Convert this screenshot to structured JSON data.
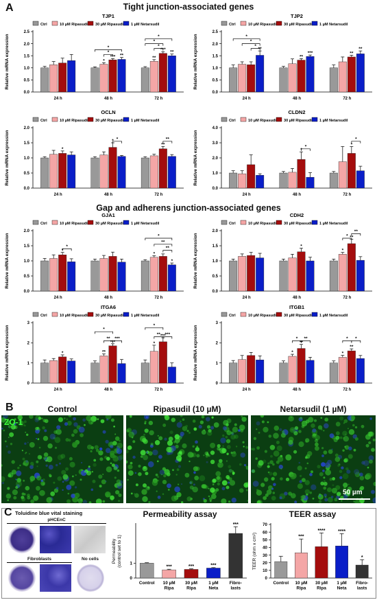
{
  "panel_a": {
    "letter": "A",
    "section_tight": "Tight junction-associated genes",
    "section_gap": "Gap and adherens junction-associated genes"
  },
  "panel_b": {
    "letter": "B",
    "titles": [
      "Control",
      "Ripasudil (10 µM)",
      "Netarsudil (1 µM)"
    ],
    "stain_label": "ZO-1",
    "scale_bar": "50 µm"
  },
  "panel_c": {
    "letter": "C",
    "staining_title": "Toluidine blue vital staining",
    "label_phcenc": "pHCEnC",
    "label_fibro": "Fibroblasts",
    "label_nocells": "No cells"
  },
  "colors": {
    "ctrl": "#999999",
    "ripa10": "#f4a6a6",
    "ripa30": "#a40d0d",
    "neta": "#0a1ec8",
    "fibro": "#333333"
  },
  "chart_data": [
    {
      "type": "bar",
      "title": "TJP1",
      "ylabel": "Relative mRNA expression",
      "ylim": [
        0,
        2.5
      ],
      "yticks": [
        "0.0",
        "0.5",
        "1.0",
        "1.5",
        "2.0",
        "2.5"
      ],
      "categories": [
        "24 h",
        "48 h",
        "72 h"
      ],
      "series": [
        {
          "name": "Ctrl",
          "values": [
            1.0,
            1.0,
            1.0
          ],
          "err": [
            0.06,
            0.04,
            0.05
          ],
          "stars": [
            "",
            "",
            ""
          ]
        },
        {
          "name": "10 µM Ripasudil",
          "values": [
            1.13,
            1.15,
            1.27
          ],
          "err": [
            0.13,
            0.06,
            0.07
          ],
          "stars": [
            "",
            "*",
            "**"
          ]
        },
        {
          "name": "30 µM Ripasudil",
          "values": [
            1.2,
            1.33,
            1.6
          ],
          "err": [
            0.2,
            0.05,
            0.07
          ],
          "stars": [
            "",
            "***",
            "***"
          ]
        },
        {
          "name": "1 µM Netarsudil",
          "values": [
            1.3,
            1.35,
            1.5
          ],
          "err": [
            0.25,
            0.08,
            0.07
          ],
          "stars": [
            "",
            "**",
            "**"
          ]
        }
      ],
      "brackets": [
        {
          "cat": 1,
          "from": 1,
          "to": 2,
          "level": 1.55,
          "label": "*"
        },
        {
          "cat": 1,
          "from": 0,
          "to": 3,
          "level": 1.75,
          "label": "*"
        },
        {
          "cat": 2,
          "from": 1,
          "to": 2,
          "level": 1.8,
          "label": "*"
        },
        {
          "cat": 2,
          "from": 0,
          "to": 2,
          "level": 2.0,
          "label": "*"
        },
        {
          "cat": 2,
          "from": 0,
          "to": 3,
          "level": 2.2,
          "label": "*"
        }
      ]
    },
    {
      "type": "bar",
      "title": "TJP2",
      "ylabel": "Relative mRNA expression",
      "ylim": [
        0,
        2.5
      ],
      "yticks": [
        "0.0",
        "0.5",
        "1.0",
        "1.5",
        "2.0",
        "2.5"
      ],
      "categories": [
        "24 h",
        "48 h",
        "72 h"
      ],
      "series": [
        {
          "name": "Ctrl",
          "values": [
            1.0,
            1.0,
            1.0
          ],
          "err": [
            0.12,
            0.06,
            0.12
          ],
          "stars": [
            "",
            "",
            ""
          ]
        },
        {
          "name": "10 µM Ripasudil",
          "values": [
            1.15,
            1.17,
            1.25
          ],
          "err": [
            0.1,
            0.2,
            0.2
          ],
          "stars": [
            "",
            "",
            ""
          ]
        },
        {
          "name": "30 µM Ripasudil",
          "values": [
            1.13,
            1.32,
            1.45
          ],
          "err": [
            0.12,
            0.06,
            0.07
          ],
          "stars": [
            "",
            "**",
            "**"
          ]
        },
        {
          "name": "1 µM Netarsudil",
          "values": [
            1.52,
            1.47,
            1.58
          ],
          "err": [
            0.18,
            0.06,
            0.12
          ],
          "stars": [
            "**",
            "***",
            "**"
          ]
        }
      ],
      "brackets": [
        {
          "cat": 0,
          "from": 2,
          "to": 3,
          "level": 1.8,
          "label": "*"
        },
        {
          "cat": 0,
          "from": 1,
          "to": 3,
          "level": 2.0,
          "label": "*"
        },
        {
          "cat": 0,
          "from": 0,
          "to": 3,
          "level": 2.2,
          "label": "*"
        }
      ]
    },
    {
      "type": "bar",
      "title": "OCLN",
      "ylabel": "Relative mRNA expression",
      "ylim": [
        0,
        2.0
      ],
      "yticks": [
        "0.0",
        "0.5",
        "1.0",
        "1.5",
        "2.0"
      ],
      "categories": [
        "24 h",
        "48 h",
        "72 h"
      ],
      "series": [
        {
          "name": "Ctrl",
          "values": [
            1.0,
            1.0,
            1.0
          ],
          "err": [
            0.04,
            0.04,
            0.04
          ],
          "stars": [
            "",
            "",
            ""
          ]
        },
        {
          "name": "10 µM Ripasudil",
          "values": [
            1.12,
            1.1,
            1.07
          ],
          "err": [
            0.13,
            0.1,
            0.05
          ],
          "stars": [
            "",
            "",
            ""
          ]
        },
        {
          "name": "30 µM Ripasudil",
          "values": [
            1.15,
            1.35,
            1.3
          ],
          "err": [
            0.08,
            0.15,
            0.08
          ],
          "stars": [
            "*",
            "*",
            "**"
          ]
        },
        {
          "name": "1 µM Netarsudil",
          "values": [
            1.1,
            1.05,
            1.05
          ],
          "err": [
            0.1,
            0.03,
            0.06
          ],
          "stars": [
            "",
            "",
            ""
          ]
        }
      ],
      "brackets": [
        {
          "cat": 1,
          "from": 2,
          "to": 3,
          "level": 1.55,
          "label": "*"
        },
        {
          "cat": 2,
          "from": 2,
          "to": 3,
          "level": 1.55,
          "label": "**"
        }
      ]
    },
    {
      "type": "bar",
      "title": "CLDN2",
      "ylabel": "Relative mRNA expression",
      "ylim": [
        0,
        4.0
      ],
      "yticks": [
        "0.0",
        "1.0",
        "2.0",
        "3.0",
        "4.0"
      ],
      "categories": [
        "24 h",
        "48 h",
        "72 h"
      ],
      "series": [
        {
          "name": "Ctrl",
          "values": [
            1.0,
            1.0,
            1.0
          ],
          "err": [
            0.15,
            0.1,
            0.1
          ],
          "stars": [
            "",
            "",
            ""
          ]
        },
        {
          "name": "10 µM Ripasudil",
          "values": [
            0.95,
            1.05,
            1.75
          ],
          "err": [
            0.2,
            0.25,
            1.0
          ],
          "stars": [
            "",
            "",
            ""
          ]
        },
        {
          "name": "30 µM Ripasudil",
          "values": [
            1.55,
            1.9,
            2.3
          ],
          "err": [
            0.65,
            0.5,
            0.45
          ],
          "stars": [
            "",
            "*",
            "*"
          ]
        },
        {
          "name": "1 µM Netarsudil",
          "values": [
            0.85,
            0.72,
            1.15
          ],
          "err": [
            0.1,
            0.3,
            0.3
          ],
          "stars": [
            "",
            "",
            ""
          ]
        }
      ],
      "brackets": [
        {
          "cat": 1,
          "from": 2,
          "to": 3,
          "level": 2.6,
          "label": "*"
        },
        {
          "cat": 2,
          "from": 2,
          "to": 3,
          "level": 3.1,
          "label": "*"
        }
      ]
    },
    {
      "type": "bar",
      "title": "GJA1",
      "ylabel": "Relative mRNA expression",
      "ylim": [
        0,
        2.0
      ],
      "yticks": [
        "0.0",
        "0.5",
        "1.0",
        "1.5",
        "2.0"
      ],
      "categories": [
        "24 h",
        "48 h",
        "72 h"
      ],
      "series": [
        {
          "name": "Ctrl",
          "values": [
            1.0,
            1.0,
            1.0
          ],
          "err": [
            0.08,
            0.06,
            0.04
          ],
          "stars": [
            "",
            "",
            ""
          ]
        },
        {
          "name": "10 µM Ripasudil",
          "values": [
            1.08,
            1.08,
            1.12
          ],
          "err": [
            0.12,
            0.1,
            0.05
          ],
          "stars": [
            "",
            "",
            "*"
          ]
        },
        {
          "name": "30 µM Ripasudil",
          "values": [
            1.2,
            1.15,
            1.15
          ],
          "err": [
            0.08,
            0.14,
            0.08
          ],
          "stars": [
            "*",
            "",
            ""
          ]
        },
        {
          "name": "1 µM Netarsudil",
          "values": [
            0.97,
            0.96,
            0.87
          ],
          "err": [
            0.1,
            0.1,
            0.06
          ],
          "stars": [
            "",
            "",
            "*"
          ]
        }
      ],
      "brackets": [
        {
          "cat": 0,
          "from": 2,
          "to": 3,
          "level": 1.4,
          "label": "*"
        },
        {
          "cat": 2,
          "from": 2,
          "to": 3,
          "level": 1.35,
          "label": "**"
        },
        {
          "cat": 2,
          "from": 1,
          "to": 3,
          "level": 1.55,
          "label": "**"
        },
        {
          "cat": 2,
          "from": 0,
          "to": 3,
          "level": 1.75,
          "label": "*"
        }
      ]
    },
    {
      "type": "bar",
      "title": "CDH2",
      "ylabel": "Relative mRNA expression",
      "ylim": [
        0,
        2.0
      ],
      "yticks": [
        "0.0",
        "0.5",
        "1.0",
        "1.5",
        "2.0"
      ],
      "categories": [
        "24 h",
        "48 h",
        "72 h"
      ],
      "series": [
        {
          "name": "Ctrl",
          "values": [
            1.0,
            1.0,
            1.0
          ],
          "err": [
            0.06,
            0.06,
            0.06
          ],
          "stars": [
            "",
            "",
            ""
          ]
        },
        {
          "name": "10 µM Ripasudil",
          "values": [
            1.15,
            1.1,
            1.22
          ],
          "err": [
            0.08,
            0.12,
            0.06
          ],
          "stars": [
            "",
            "",
            "*"
          ]
        },
        {
          "name": "30 µM Ripasudil",
          "values": [
            1.18,
            1.3,
            1.57
          ],
          "err": [
            0.1,
            0.12,
            0.15
          ],
          "stars": [
            "",
            "*",
            "**"
          ]
        },
        {
          "name": "1 µM Netarsudil",
          "values": [
            1.1,
            1.0,
            1.02
          ],
          "err": [
            0.15,
            0.12,
            0.12
          ],
          "stars": [
            "",
            "",
            ""
          ]
        }
      ],
      "brackets": [
        {
          "cat": 2,
          "from": 1,
          "to": 2,
          "level": 1.75,
          "label": "*"
        },
        {
          "cat": 2,
          "from": 2,
          "to": 3,
          "level": 1.9,
          "label": "**"
        }
      ]
    },
    {
      "type": "bar",
      "title": "ITGA6",
      "ylabel": "Relative mRNA expression",
      "ylim": [
        0,
        3
      ],
      "yticks": [
        "0",
        "1",
        "2",
        "3"
      ],
      "categories": [
        "24 h",
        "48 h",
        "72 h"
      ],
      "series": [
        {
          "name": "Ctrl",
          "values": [
            1.0,
            1.0,
            1.0
          ],
          "err": [
            0.15,
            0.1,
            0.15
          ],
          "stars": [
            "",
            "",
            ""
          ]
        },
        {
          "name": "10 µM Ripasudil",
          "values": [
            1.12,
            1.35,
            1.58
          ],
          "err": [
            0.1,
            0.1,
            0.3
          ],
          "stars": [
            "",
            "**",
            "*"
          ]
        },
        {
          "name": "30 µM Ripasudil",
          "values": [
            1.3,
            1.85,
            2.05
          ],
          "err": [
            0.1,
            0.1,
            0.2
          ],
          "stars": [
            "*",
            "***",
            "***"
          ]
        },
        {
          "name": "1 µM Netarsudil",
          "values": [
            1.1,
            0.97,
            0.8
          ],
          "err": [
            0.1,
            0.2,
            0.2
          ],
          "stars": [
            "",
            "",
            ""
          ]
        }
      ],
      "brackets": [
        {
          "cat": 1,
          "from": 1,
          "to": 2,
          "level": 2.1,
          "label": "**"
        },
        {
          "cat": 1,
          "from": 2,
          "to": 3,
          "level": 2.1,
          "label": "***"
        },
        {
          "cat": 1,
          "from": 0,
          "to": 2,
          "level": 2.55,
          "label": "*"
        },
        {
          "cat": 2,
          "from": 1,
          "to": 2,
          "level": 2.3,
          "label": "**"
        },
        {
          "cat": 2,
          "from": 2,
          "to": 3,
          "level": 2.3,
          "label": "***"
        },
        {
          "cat": 2,
          "from": 0,
          "to": 2,
          "level": 2.75,
          "label": "*"
        }
      ]
    },
    {
      "type": "bar",
      "title": "ITGB1",
      "ylabel": "Relative mRNA expression",
      "ylim": [
        0,
        3
      ],
      "yticks": [
        "0",
        "1",
        "2",
        "3"
      ],
      "categories": [
        "24 h",
        "48 h",
        "72 h"
      ],
      "series": [
        {
          "name": "Ctrl",
          "values": [
            1.0,
            1.0,
            1.0
          ],
          "err": [
            0.12,
            0.1,
            0.1
          ],
          "stars": [
            "",
            "",
            ""
          ]
        },
        {
          "name": "10 µM Ripasudil",
          "values": [
            1.17,
            1.33,
            1.28
          ],
          "err": [
            0.2,
            0.1,
            0.1
          ],
          "stars": [
            "",
            "*",
            "*"
          ]
        },
        {
          "name": "30 µM Ripasudil",
          "values": [
            1.37,
            1.72,
            1.6
          ],
          "err": [
            0.15,
            0.2,
            0.1
          ],
          "stars": [
            "",
            "**",
            "**"
          ]
        },
        {
          "name": "1 µM Netarsudil",
          "values": [
            1.15,
            1.13,
            1.22
          ],
          "err": [
            0.2,
            0.15,
            0.15
          ],
          "stars": [
            "",
            "",
            ""
          ]
        }
      ],
      "brackets": [
        {
          "cat": 1,
          "from": 1,
          "to": 2,
          "level": 2.1,
          "label": "*"
        },
        {
          "cat": 1,
          "from": 2,
          "to": 3,
          "level": 2.1,
          "label": "**"
        },
        {
          "cat": 2,
          "from": 1,
          "to": 2,
          "level": 2.1,
          "label": "*"
        },
        {
          "cat": 2,
          "from": 2,
          "to": 3,
          "level": 2.1,
          "label": "*"
        }
      ]
    },
    {
      "type": "bar",
      "title": "Permeability assay",
      "ylabel": "Permeability (control set to 1)",
      "ylim": [
        0,
        3.6
      ],
      "yticks": [
        "0",
        "1"
      ],
      "categories": [
        "Control",
        "10 µM Ripa",
        "30 µM Ripa",
        "1 µM Neta",
        "Fibro-blasts"
      ],
      "values": [
        1.0,
        0.55,
        0.58,
        0.67,
        3.0
      ],
      "err": [
        0.03,
        0.04,
        0.04,
        0.03,
        0.45
      ],
      "stars": [
        "",
        "***",
        "***",
        "***",
        "***"
      ],
      "colors": [
        "#999999",
        "#f4a6a6",
        "#a40d0d",
        "#0a1ec8",
        "#333333"
      ]
    },
    {
      "type": "bar",
      "title": "TEER assay",
      "ylabel": "TEER (ohm x cm²)",
      "ylim": [
        0,
        70
      ],
      "yticks": [
        "0",
        "10",
        "20",
        "30",
        "40",
        "50",
        "60",
        "70"
      ],
      "categories": [
        "Control",
        "10 µM Ripa",
        "30 µM Ripa",
        "1 µM Neta",
        "Fibro-blasts"
      ],
      "values": [
        21.5,
        33,
        41,
        42,
        17
      ],
      "err": [
        7,
        18,
        18,
        16,
        7
      ],
      "stars": [
        "",
        "***",
        "****",
        "****",
        "*"
      ],
      "colors": [
        "#999999",
        "#f4a6a6",
        "#a40d0d",
        "#0a1ec8",
        "#333333"
      ]
    }
  ]
}
